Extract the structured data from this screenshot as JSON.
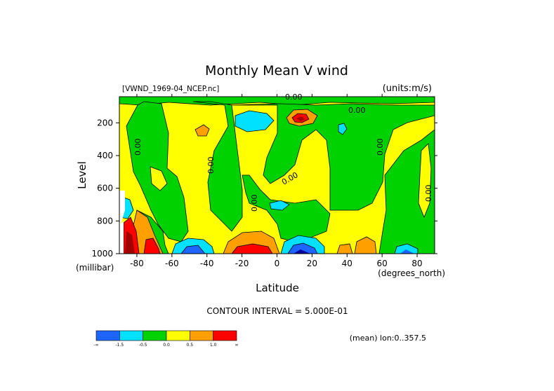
{
  "chart_data": {
    "type": "heatmap",
    "title": "Monthly Mean V wind",
    "dataset_label": "[VWND_1969-04_NCEP.nc]",
    "units_label": "(units:m/s)",
    "xlabel": "Latitude",
    "x_unit_label": "(degrees_north)",
    "ylabel": "Level",
    "y_unit_label": "(millibar)",
    "xlim": [
      -90,
      90
    ],
    "ylim": [
      1000,
      40
    ],
    "x_ticks": [
      -80,
      -60,
      -40,
      -20,
      0,
      20,
      40,
      60,
      80
    ],
    "x_tick_labels": [
      "-80",
      "-60",
      "-40",
      "-20",
      "0",
      "20",
      "40",
      "60",
      "80"
    ],
    "y_ticks": [
      200,
      400,
      600,
      800,
      1000
    ],
    "y_tick_labels": [
      "200",
      "400",
      "600",
      "800",
      "1000"
    ],
    "contour_label": "0.00",
    "contour_interval_text": "CONTOUR INTERVAL = 5.000E-01",
    "mean_text": "(mean) lon:0..357.5",
    "legend": {
      "colors": [
        "#1e64ff",
        "#00e0ff",
        "#00d200",
        "#ffff00",
        "#ffa000",
        "#ff0000"
      ],
      "tick_labels": [
        "-∞",
        "-1.5",
        "-0.5",
        "0.0",
        "0.5",
        "1.0",
        "∞"
      ]
    },
    "levels_color_map": {
      "below_-1.5": "#1e64ff",
      "-1.5_to_-0.5": "#00e0ff",
      "-0.5_to_0.0": "#00d200",
      "0.0_to_0.5": "#ffff00",
      "0.5_to_1.0": "#ffa000",
      "above_1.0": "#ff0000",
      "strong_extremes": [
        "#0000a0",
        "#a00000"
      ]
    }
  }
}
